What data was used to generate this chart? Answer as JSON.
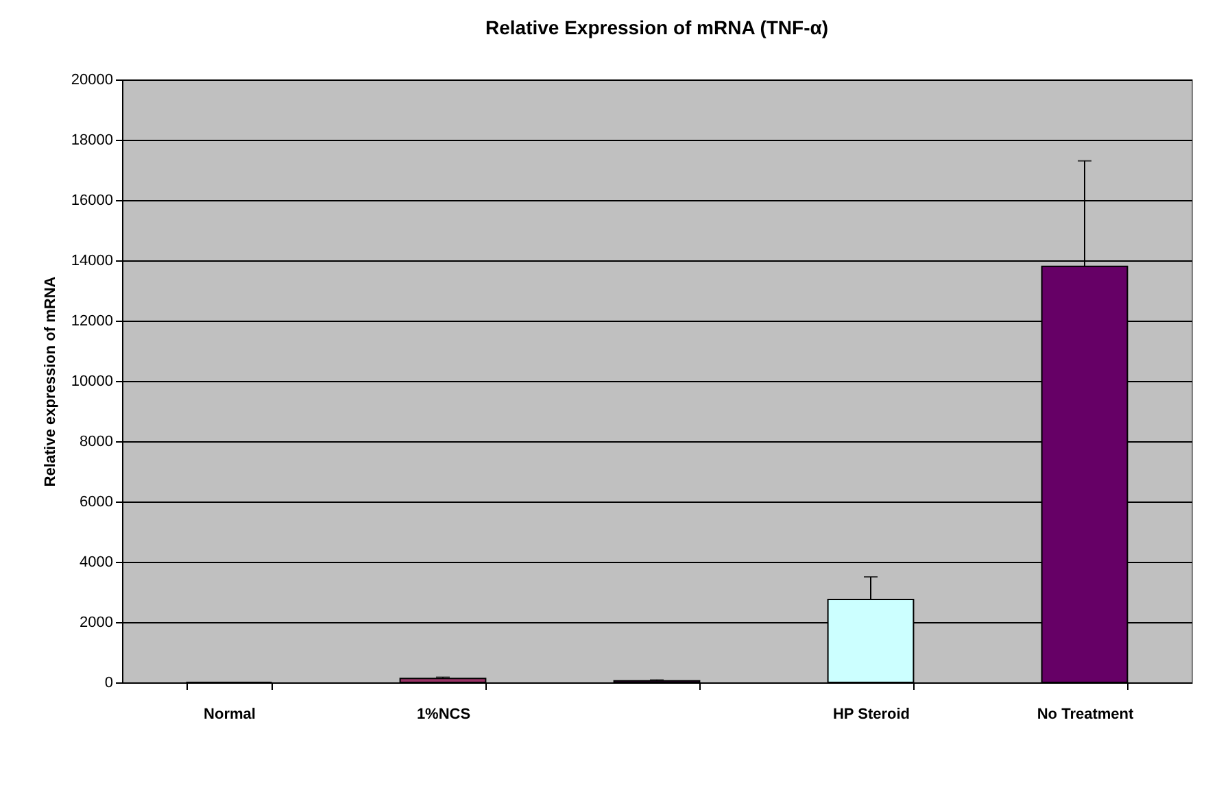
{
  "chart_data": {
    "type": "bar",
    "title": "Relative Expression of mRNA (TNF-α)",
    "ylabel": "Relative expression of mRNA",
    "categories": [
      "Normal",
      "1%NCS",
      null,
      "HP Steroid",
      "No Treatment"
    ],
    "values": [
      0,
      130,
      50,
      2750,
      13800
    ],
    "colors": [
      "#000000",
      "#993366",
      "#660066",
      "#ccffff",
      "#660066"
    ],
    "errors": [
      null,
      [
        130,
        170
      ],
      [
        50,
        80
      ],
      [
        2750,
        3500
      ],
      [
        13800,
        17300
      ]
    ],
    "ylim": [
      0,
      20000
    ],
    "yticks": [
      0,
      2000,
      4000,
      6000,
      8000,
      10000,
      12000,
      14000,
      16000,
      18000,
      20000
    ],
    "grid": "y",
    "legend": false
  }
}
